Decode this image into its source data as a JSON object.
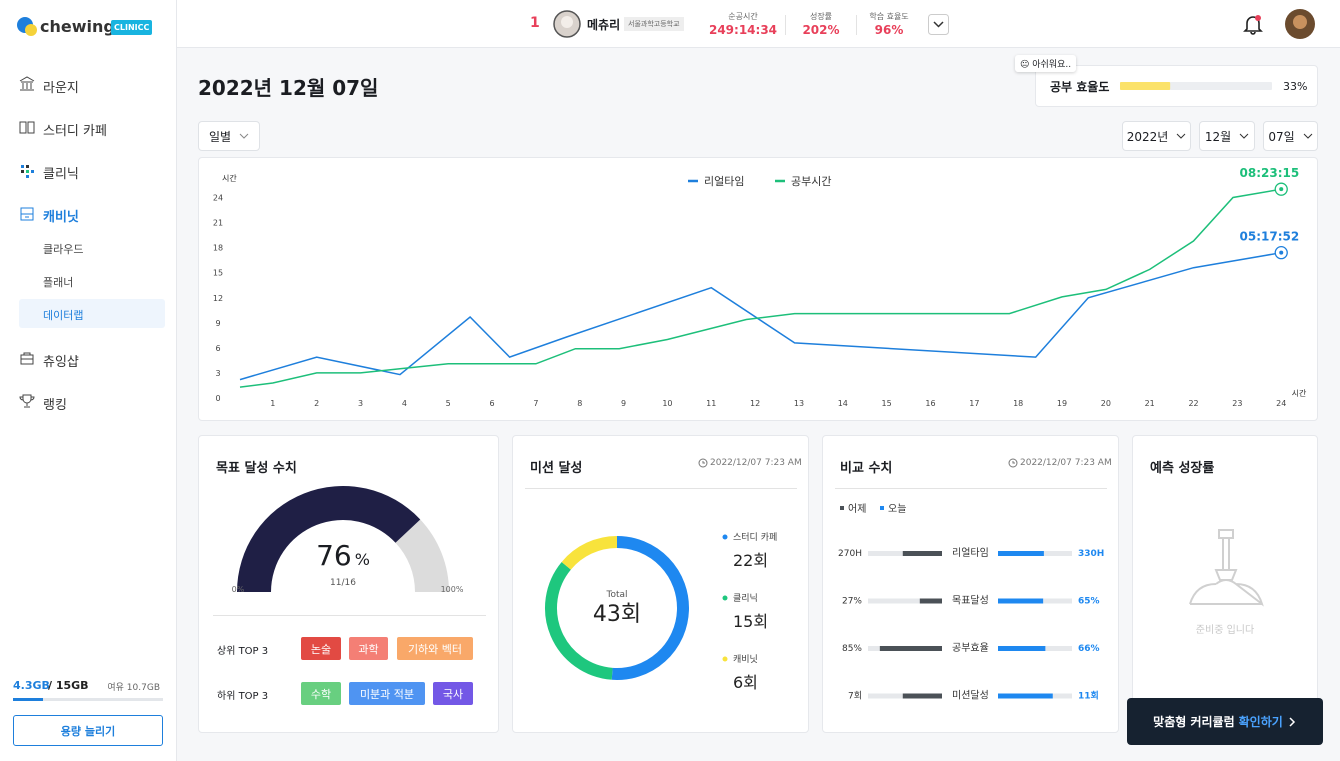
{
  "sidebar": {
    "logo": "chewing",
    "badge": "CLINICC",
    "nav": [
      "라운지",
      "스터디 카페",
      "클리닉",
      "캐비닛"
    ],
    "sub_nav": [
      "클라우드",
      "플래너",
      "데이터랩"
    ],
    "nav2": [
      "츄잉샵",
      "랭킹"
    ],
    "storage": {
      "used": "4.3GB",
      "total": "/ 15GB",
      "free": "여유 10.7GB"
    },
    "button": "용량 늘리기"
  },
  "header": {
    "rank": "1",
    "name": "메츄리",
    "school": "서울과학고등학교",
    "stats": [
      {
        "label": "순공시간",
        "value": "249:14:34"
      },
      {
        "label": "성장률",
        "value": "202%"
      },
      {
        "label": "학습 효율도",
        "value": "96%"
      }
    ]
  },
  "page": {
    "title": "2022년 12월 07일",
    "period": "일별",
    "year": "2022년",
    "month": "12월",
    "day": "07일"
  },
  "efficiency": {
    "badge": "😐 아쉬워요..",
    "label": "공부 효율도",
    "value": 33,
    "value_label": "33%",
    "range": [
      0,
      100
    ],
    "color": "#fbe26a"
  },
  "line_chart": {
    "type": "line",
    "y_label": "시간",
    "x_label": "시간",
    "xlim": [
      0,
      24.2
    ],
    "ylim": [
      0,
      25.5
    ],
    "xticks": [
      1,
      2,
      3,
      4,
      5,
      6,
      7,
      8,
      9,
      10,
      11,
      12,
      13,
      14,
      15,
      16,
      17,
      18,
      19,
      20,
      21,
      22,
      23,
      24
    ],
    "yticks": [
      0,
      3,
      6,
      9,
      12,
      15,
      18,
      21,
      24
    ],
    "series": [
      {
        "name": "리얼타임",
        "color": "#1e7fdc",
        "end_label": "05:17:52",
        "x": [
          0.25,
          2,
          3.9,
          5.5,
          6.4,
          7.7,
          11,
          12.9,
          18.4,
          19.6,
          22,
          24
        ],
        "values": [
          2.2,
          4.9,
          2.8,
          9.7,
          4.9,
          7.3,
          13.2,
          6.6,
          4.9,
          12,
          15.6,
          17.4
        ]
      },
      {
        "name": "공부시간",
        "color": "#1dbf7a",
        "end_label": "08:23:15",
        "x": [
          0.25,
          1,
          2,
          3,
          3.9,
          5,
          7,
          7.9,
          8.9,
          10,
          11.8,
          12.9,
          17.8,
          19,
          20,
          21,
          22,
          22.9,
          24
        ],
        "values": [
          1.3,
          1.8,
          3,
          3,
          3.5,
          4.1,
          4.1,
          5.9,
          5.9,
          7,
          9.4,
          10.1,
          10.1,
          12.1,
          13,
          15.4,
          18.8,
          24,
          25
        ]
      }
    ]
  },
  "goal": {
    "title": "목표 달성 수치",
    "value": 76,
    "unit": "%",
    "sub": "11/16",
    "range": [
      0,
      100
    ],
    "ticks": [
      {
        "value": 0,
        "label": "0%"
      },
      {
        "value": 100,
        "label": "100%"
      }
    ],
    "color": "#1f1f45",
    "track_color": "#dcdcdc",
    "groups": [
      {
        "label": "상위 TOP 3",
        "tags": [
          {
            "label": "논술",
            "color": "#e24a43"
          },
          {
            "label": "과학",
            "color": "#f47f75"
          },
          {
            "label": "기하와 벡터",
            "color": "#f9a869"
          }
        ]
      },
      {
        "label": "하위 TOP 3",
        "tags": [
          {
            "label": "수학",
            "color": "#68cf80"
          },
          {
            "label": "미분과 적분",
            "color": "#4f94f2"
          },
          {
            "label": "국사",
            "color": "#7358e6"
          }
        ]
      }
    ]
  },
  "mission": {
    "type": "donut",
    "title": "미션 달성",
    "date": "2022/12/07 7:23 AM",
    "total_title": "Total",
    "total_label": "43회",
    "categories": [
      "스터디 카페",
      "클리닉",
      "캐비닛"
    ],
    "values": [
      22,
      15,
      6
    ],
    "value_labels": [
      "22회",
      "15회",
      "6회"
    ],
    "colors": [
      "#1e88f0",
      "#1ec77e",
      "#f8e33c"
    ]
  },
  "compare": {
    "title": "비교 수치",
    "date": "2022/12/07 7:23 AM",
    "legend": [
      {
        "name": "어제",
        "color": "#4b5157"
      },
      {
        "name": "오늘",
        "color": "#1e88f0"
      }
    ],
    "range": [
      0,
      100
    ],
    "rows": [
      {
        "name": "리얼타임",
        "yesterday": "270H",
        "today": "330H",
        "yesterday_bar": 53,
        "today_bar": 62
      },
      {
        "name": "목표달성",
        "yesterday": "27%",
        "today": "65%",
        "yesterday_bar": 30,
        "today_bar": 61
      },
      {
        "name": "공부효율",
        "yesterday": "85%",
        "today": "66%",
        "yesterday_bar": 84,
        "today_bar": 64
      },
      {
        "name": "미션달성",
        "yesterday": "7회",
        "today": "11회",
        "yesterday_bar": 53,
        "today_bar": 74
      }
    ]
  },
  "forecast": {
    "title": "예측 성장률",
    "message": "준비중 입니다"
  },
  "cta": {
    "text": "맞춤형 커리큘럼",
    "link": "확인하기"
  }
}
